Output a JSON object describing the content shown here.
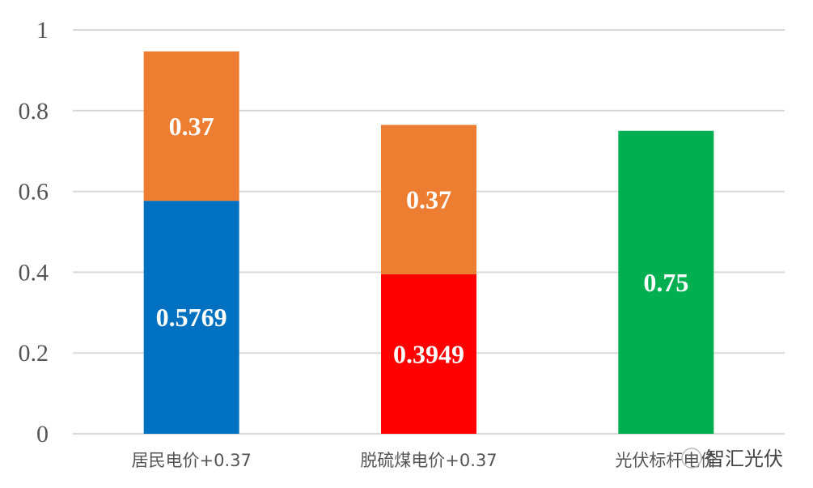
{
  "chart_data": {
    "type": "bar",
    "stacked": true,
    "categories": [
      "居民电价+0.37",
      "脱硫煤电价+0.37",
      "光伏标杆电价"
    ],
    "series": [
      {
        "values": [
          0.5769,
          0.3949,
          0.75
        ],
        "colors": [
          "#0070C0",
          "#FF0000",
          "#00B050"
        ],
        "labels": [
          "0.5769",
          "0.3949",
          "0.75"
        ]
      },
      {
        "values": [
          0.37,
          0.37,
          null
        ],
        "colors": [
          "#ED7D31",
          "#ED7D31",
          "#ED7D31"
        ],
        "labels": [
          "0.37",
          "0.37",
          ""
        ]
      }
    ],
    "ylim": [
      0,
      1
    ],
    "yticks": [
      "0",
      "0.2",
      "0.4",
      "0.6",
      "0.8",
      "1"
    ],
    "grid": true,
    "legend": "none"
  },
  "watermark": "智汇光伏"
}
